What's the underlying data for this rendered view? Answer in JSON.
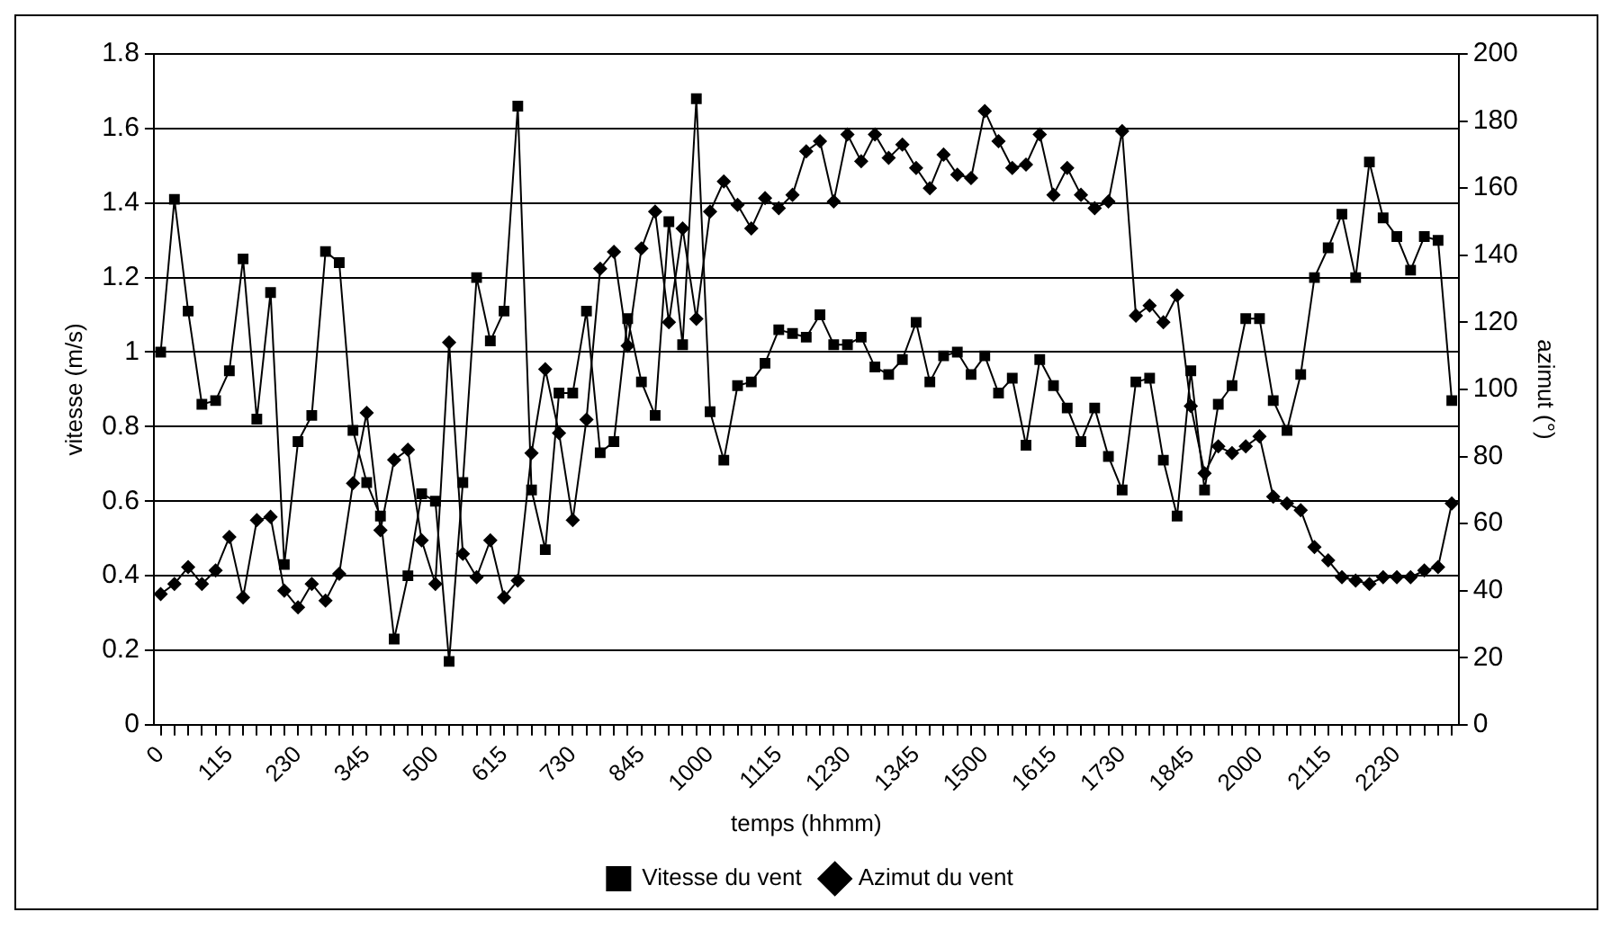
{
  "chart_data": {
    "type": "line",
    "xlabel": "temps (hhmm)",
    "ylabel": "vitesse (m/s)",
    "y2label": "azimut (°)",
    "categories": [
      "0",
      null,
      null,
      null,
      null,
      "115",
      null,
      null,
      null,
      null,
      "230",
      null,
      null,
      null,
      null,
      "345",
      null,
      null,
      null,
      null,
      "500",
      null,
      null,
      null,
      null,
      "615",
      null,
      null,
      null,
      null,
      "730",
      null,
      null,
      null,
      null,
      "845",
      null,
      null,
      null,
      null,
      "1000",
      null,
      null,
      null,
      null,
      "1115",
      null,
      null,
      null,
      null,
      "1230",
      null,
      null,
      null,
      null,
      "1345",
      null,
      null,
      null,
      null,
      "1500",
      null,
      null,
      null,
      null,
      "1615",
      null,
      null,
      null,
      null,
      "1730",
      null,
      null,
      null,
      null,
      "1845",
      null,
      null,
      null,
      null,
      "2000",
      null,
      null,
      null,
      null,
      "2115",
      null,
      null,
      null,
      null,
      "2230",
      null,
      null,
      null,
      null
    ],
    "series": [
      {
        "name": "Vitesse du vent",
        "color": "#000000",
        "marker": "square",
        "values": [
          1.0,
          1.41,
          1.11,
          0.86,
          0.87,
          0.95,
          1.25,
          0.82,
          1.16,
          0.43,
          0.76,
          0.83,
          1.27,
          1.24,
          0.79,
          0.65,
          0.56,
          0.23,
          0.4,
          0.62,
          0.6,
          0.17,
          0.65,
          1.2,
          1.03,
          1.11,
          1.66,
          0.63,
          0.47,
          0.89,
          0.89,
          1.11,
          0.73,
          0.76,
          1.09,
          0.92,
          0.83,
          1.35,
          1.02,
          1.68,
          0.84,
          0.71,
          0.91,
          0.92,
          0.97,
          1.06,
          1.05,
          1.04,
          1.1,
          1.02,
          1.02,
          1.04,
          0.96,
          0.94,
          0.98,
          1.08,
          0.92,
          0.99,
          1.0,
          0.94,
          0.99,
          0.89,
          0.93,
          0.75,
          0.98,
          0.91,
          0.85,
          0.76,
          0.85,
          0.72,
          0.63,
          0.92,
          0.93,
          0.71,
          0.56,
          0.95,
          0.63,
          0.86,
          0.91,
          1.09,
          1.09,
          0.87,
          0.79,
          0.94,
          1.2,
          1.28,
          1.37,
          1.2,
          1.51,
          1.36,
          1.31,
          1.22,
          1.31,
          1.3,
          0.87
        ]
      },
      {
        "name": "Azimut du vent",
        "color": "#000000",
        "marker": "diamond",
        "axis": "y2",
        "values": [
          39,
          42,
          47,
          42,
          46,
          56,
          38,
          61,
          62,
          40,
          35,
          42,
          37,
          45,
          72,
          93,
          58,
          79,
          82,
          55,
          42,
          114,
          51,
          44,
          55,
          38,
          43,
          81,
          106,
          87,
          61,
          91,
          136,
          141,
          113,
          142,
          153,
          120,
          148,
          121,
          153,
          162,
          155,
          148,
          157,
          154,
          158,
          171,
          174,
          156,
          176,
          168,
          176,
          169,
          173,
          166,
          160,
          170,
          164,
          163,
          183,
          174,
          166,
          167,
          176,
          158,
          166,
          158,
          154,
          156,
          177,
          122,
          125,
          120,
          128,
          95,
          75,
          83,
          81,
          83,
          86,
          68,
          66,
          64,
          53,
          49,
          44,
          43,
          42,
          44,
          44,
          44,
          46,
          47,
          66
        ]
      }
    ],
    "ylim": [
      0,
      1.8
    ],
    "yticks": [
      0,
      0.2,
      0.4,
      0.6,
      0.8,
      1,
      1.2,
      1.4,
      1.6,
      1.8
    ],
    "y2lim": [
      0,
      200
    ],
    "y2ticks": [
      0,
      20,
      40,
      60,
      80,
      100,
      120,
      140,
      160,
      180,
      200
    ],
    "grid": "y",
    "legend": "bottom",
    "line_style": "solid"
  }
}
